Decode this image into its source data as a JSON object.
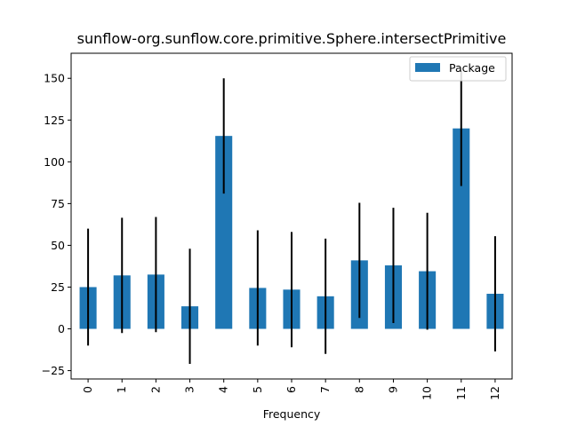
{
  "chart_data": {
    "type": "bar",
    "title": "sunflow-org.sunflow.core.primitive.Sphere.intersectPrimitive",
    "xlabel": "Frequency",
    "ylabel": "",
    "categories": [
      "0",
      "1",
      "2",
      "3",
      "4",
      "5",
      "6",
      "7",
      "8",
      "9",
      "10",
      "11",
      "12"
    ],
    "series": [
      {
        "name": "Package",
        "color": "#1f77b4",
        "values": [
          25,
          32,
          32.5,
          13.5,
          115.5,
          24.5,
          23.5,
          19.5,
          41,
          38,
          34.5,
          120,
          21
        ],
        "error": [
          35,
          34.5,
          34.5,
          34.5,
          34.5,
          34.5,
          34.5,
          34.5,
          34.5,
          34.5,
          35,
          34.5,
          34.5
        ]
      }
    ],
    "ylim": [
      -30,
      165
    ],
    "yticks": [
      -25,
      0,
      25,
      50,
      75,
      100,
      125,
      150
    ],
    "legend": "top-right",
    "grid": false,
    "error_color": "#000000"
  }
}
